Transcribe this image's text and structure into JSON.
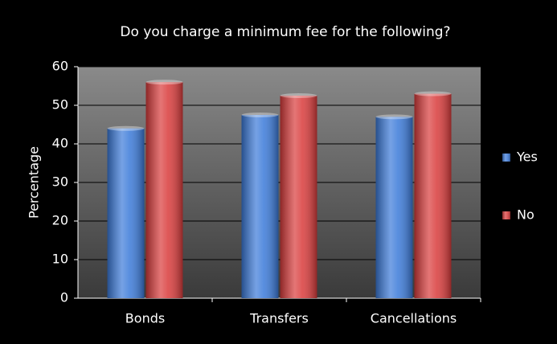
{
  "chart_data": {
    "type": "bar",
    "title": "Do you charge a minimum fee for the following?",
    "y_label": "Percentage",
    "categories": [
      "Bonds",
      "Transfers",
      "Cancellations"
    ],
    "series": [
      {
        "name": "Yes",
        "color": "#3b7ad9",
        "values": [
          44,
          47.5,
          47
        ]
      },
      {
        "name": "No",
        "color": "#d93b3b",
        "values": [
          56,
          52.5,
          53
        ]
      }
    ],
    "ylim": [
      0,
      60
    ],
    "yticks": [
      0,
      10,
      20,
      30,
      40,
      50,
      60
    ],
    "grid": true,
    "legend": "right"
  }
}
